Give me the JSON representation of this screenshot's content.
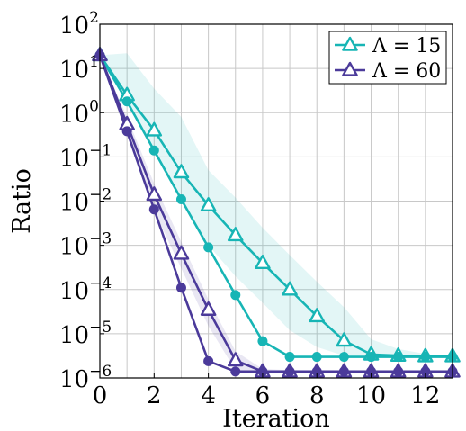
{
  "chart_data": {
    "type": "line",
    "xlabel": "Iteration",
    "ylabel": "Ratio",
    "xlim": [
      0,
      13
    ],
    "ylim": [
      1e-06,
      100
    ],
    "yscale": "log",
    "grid": true,
    "legend_position": "top-right",
    "xticks": [
      0,
      2,
      4,
      6,
      8,
      10,
      12
    ],
    "yticks": [
      {
        "value": 100,
        "base": "10",
        "exp": "2"
      },
      {
        "value": 10,
        "base": "10",
        "exp": "1"
      },
      {
        "value": 1,
        "base": "10",
        "exp": "0"
      },
      {
        "value": 0.1,
        "base": "10",
        "exp": "−1"
      },
      {
        "value": 0.01,
        "base": "10",
        "exp": "−2"
      },
      {
        "value": 0.001,
        "base": "10",
        "exp": "−3"
      },
      {
        "value": 0.0001,
        "base": "10",
        "exp": "−4"
      },
      {
        "value": 1e-05,
        "base": "10",
        "exp": "−5"
      },
      {
        "value": 1e-06,
        "base": "10",
        "exp": "−6"
      }
    ],
    "series": [
      {
        "name": "Λ = 15",
        "color": "#17b5b5",
        "marker": "triangle-open",
        "x": [
          0,
          1,
          2,
          3,
          4,
          5,
          6,
          7,
          8,
          9,
          10,
          11,
          12,
          13
        ],
        "y": [
          20,
          2.5,
          0.4,
          0.045,
          0.008,
          0.0017,
          0.0004,
          0.0001,
          2.5e-05,
          7e-06,
          3.4e-06,
          3.2e-06,
          3.1e-06,
          3.1e-06
        ],
        "band_upper": [
          20,
          22,
          3.5,
          0.8,
          0.05,
          0.012,
          0.0025,
          0.0006,
          0.00015,
          4e-05,
          7.5e-06,
          4.5e-06,
          3.5e-06,
          3e-06
        ],
        "band_lower": [
          20,
          1.6,
          0.12,
          0.01,
          0.001,
          0.0002,
          5e-05,
          1.2e-05,
          5e-06,
          3.2e-06,
          3e-06,
          3e-06,
          3e-06,
          3e-06
        ]
      },
      {
        "name": "",
        "color": "#17b5b5",
        "marker": "circle-filled",
        "x": [
          0,
          1,
          2,
          3,
          4,
          5,
          6,
          7,
          8,
          9,
          10,
          11,
          12,
          13
        ],
        "y": [
          20,
          1.8,
          0.14,
          0.011,
          0.0009,
          7.5e-05,
          6.8e-06,
          3e-06,
          3e-06,
          3e-06,
          3e-06,
          3e-06,
          3e-06,
          3e-06
        ]
      },
      {
        "name": "Λ = 60",
        "color": "#4b3a9a",
        "marker": "triangle-open",
        "x": [
          0,
          1,
          2,
          3,
          4,
          5,
          6,
          7,
          8,
          9,
          10,
          11,
          12,
          13
        ],
        "y": [
          20,
          0.55,
          0.014,
          0.00065,
          3.5e-05,
          2.5e-06,
          1.4e-06,
          1.4e-06,
          1.4e-06,
          1.4e-06,
          1.4e-06,
          1.4e-06,
          1.4e-06,
          1.4e-06
        ],
        "band_upper": [
          20,
          0.8,
          0.025,
          0.0012,
          6e-05,
          4e-06,
          1.6e-06,
          1.5e-06,
          1.5e-06,
          1.5e-06,
          1.5e-06,
          1.5e-06,
          1.5e-06,
          1.5e-06
        ],
        "band_lower": [
          20,
          0.3,
          0.006,
          0.0003,
          1.5e-05,
          1.5e-06,
          1.3e-06,
          1.3e-06,
          1.3e-06,
          1.3e-06,
          1.3e-06,
          1.3e-06,
          1.3e-06,
          1.3e-06
        ]
      },
      {
        "name": "",
        "color": "#4b3a9a",
        "marker": "circle-filled",
        "x": [
          0,
          1,
          2,
          3,
          4,
          5,
          6,
          7,
          8,
          9,
          10,
          11,
          12,
          13
        ],
        "y": [
          20,
          0.38,
          0.0065,
          0.00011,
          2.4e-06,
          1.4e-06,
          1.4e-06,
          1.4e-06,
          1.4e-06,
          1.4e-06,
          1.4e-06,
          1.4e-06,
          1.4e-06,
          1.4e-06
        ]
      }
    ]
  }
}
